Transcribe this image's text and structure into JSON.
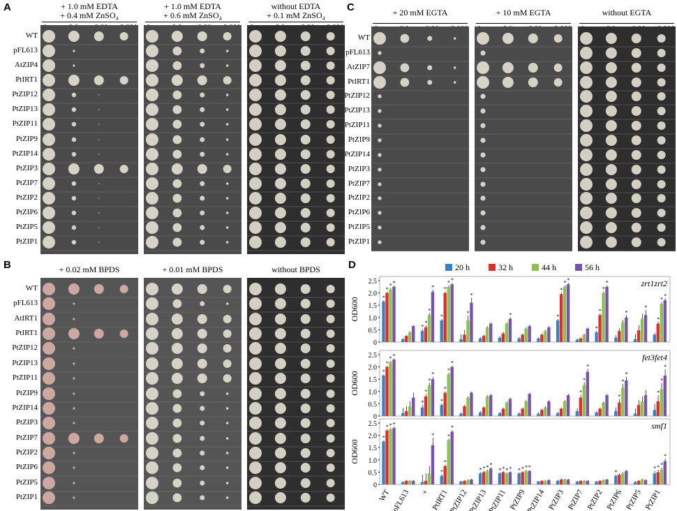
{
  "panels": {
    "A": {
      "letter": "A",
      "conditions": [
        {
          "line1": "+ 1.0 mM EDTA",
          "line2": "+ 0.4 mM ZnSO₄"
        },
        {
          "line1": "+ 1.0 mM EDTA",
          "line2": "+ 0.6 mM ZnSO₄"
        },
        {
          "line1": "without EDTA",
          "line2": "+ 0.1 mM ZnSO₄"
        }
      ],
      "dilutions": [
        "1",
        "0.1",
        "0.01",
        "0.001"
      ],
      "strains": [
        "WT",
        "pFL613",
        "AtZIP4",
        "PtIRT1",
        "PtZIP12",
        "PtZIP13",
        "PtZIP11",
        "PtZIP9",
        "PtZIP14",
        "PtZIP3",
        "PtZIP7",
        "PtZIP2",
        "PtZIP6",
        "PtZIP5",
        "PtZIP1"
      ]
    },
    "B": {
      "letter": "B",
      "conditions": [
        {
          "line1": "+ 0.02 mM BPDS",
          "line2": ""
        },
        {
          "line1": "+ 0.01 mM BPDS",
          "line2": ""
        },
        {
          "line1": "without BPDS",
          "line2": ""
        }
      ],
      "dilutions": [
        "1",
        "0.1",
        "0.01",
        "0.001"
      ],
      "strains": [
        "WT",
        "pFL613",
        "AtIRT1",
        "PtIRT1",
        "PtZIP12",
        "PtZIP13",
        "PtZIP11",
        "PtZIP9",
        "PtZIP14",
        "PtZIP3",
        "PtZIP7",
        "PtZIP2",
        "PtZIP6",
        "PtZIP5",
        "PtZIP1"
      ]
    },
    "C": {
      "letter": "C",
      "conditions": [
        {
          "line1": "+ 20 mM EGTA",
          "line2": ""
        },
        {
          "line1": "+ 10 mM EGTA",
          "line2": ""
        },
        {
          "line1": "without EGTA",
          "line2": ""
        }
      ],
      "dilutions": [
        "1",
        "0.1",
        "0.01",
        "0.001"
      ],
      "strains": [
        "WT",
        "pFL613",
        "AtZIP7",
        "PtIRT1",
        "PtZIP12",
        "PtZIP13",
        "PtZIP11",
        "PtZIP9",
        "PtZIP14",
        "PtZIP3",
        "PtZIP7",
        "PtZIP2",
        "PtZIP6",
        "PtZIP5",
        "PtZIP1"
      ]
    },
    "D": {
      "letter": "D",
      "ylabel": "OD600",
      "yticks": [
        "0",
        "0.5",
        "1.0",
        "1.5",
        "2.0",
        "2.5"
      ]
    }
  },
  "chart_data": {
    "type": "bar",
    "categories": [
      "WT",
      "pFL613",
      "+",
      "PtIRT1",
      "PtZIP12",
      "PtZIP13",
      "PtZIP11",
      "PtZIP9",
      "PtZIP14",
      "PtZIP3",
      "PtZIP7",
      "PtZIP2",
      "PtZIP6",
      "PtZIP5",
      "PtZIP1"
    ],
    "legend": [
      "20 h",
      "32 h",
      "44 h",
      "56 h"
    ],
    "colors": [
      "#3b7fc4",
      "#d9302c",
      "#8cc152",
      "#7a52a8"
    ],
    "ylim": [
      0,
      2.5
    ],
    "subplots": [
      {
        "name": "zrt1zrt2",
        "series": [
          {
            "name": "20 h",
            "values": [
              1.65,
              0.12,
              0.45,
              0.88,
              0.12,
              0.15,
              0.18,
              0.15,
              0.15,
              0.88,
              0.1,
              0.4,
              0.18,
              0.12,
              0.3
            ]
          },
          {
            "name": "32 h",
            "values": [
              2.0,
              0.25,
              0.6,
              2.0,
              0.3,
              0.25,
              0.35,
              0.3,
              0.3,
              1.95,
              0.15,
              1.1,
              0.45,
              0.48,
              0.75
            ]
          },
          {
            "name": "44 h",
            "values": [
              2.15,
              0.4,
              1.1,
              2.25,
              0.88,
              0.6,
              0.75,
              0.55,
              0.45,
              2.25,
              0.3,
              2.0,
              0.8,
              0.95,
              1.55
            ]
          },
          {
            "name": "56 h",
            "values": [
              2.25,
              0.65,
              2.05,
              2.35,
              1.6,
              0.75,
              0.95,
              0.65,
              0.6,
              2.35,
              0.55,
              2.25,
              1.0,
              1.1,
              1.7
            ]
          }
        ],
        "errors": [
          0.05,
          0.04,
          0.08,
          0.06,
          0.2,
          0.05,
          0.06,
          0.05,
          0.05,
          0.06,
          0.04,
          0.06,
          0.1,
          0.2,
          0.08
        ],
        "stars": [
          [
            1,
            1,
            1,
            1
          ],
          [
            0,
            0,
            0,
            0
          ],
          [
            1,
            1,
            1,
            1
          ],
          [
            1,
            1,
            1,
            1
          ],
          [
            0,
            0,
            1,
            1
          ],
          [
            0,
            0,
            0,
            0
          ],
          [
            0,
            0,
            0,
            1
          ],
          [
            0,
            0,
            0,
            0
          ],
          [
            0,
            0,
            0,
            0
          ],
          [
            1,
            1,
            1,
            1
          ],
          [
            0,
            0,
            0,
            0
          ],
          [
            1,
            1,
            1,
            1
          ],
          [
            0,
            0,
            0,
            1
          ],
          [
            0,
            0,
            0,
            1
          ],
          [
            0,
            1,
            1,
            1
          ]
        ]
      },
      {
        "name": "fet3fet4",
        "series": [
          {
            "name": "20 h",
            "values": [
              1.65,
              0.12,
              0.35,
              0.45,
              0.1,
              0.15,
              0.12,
              0.1,
              0.1,
              0.12,
              0.2,
              0.15,
              0.2,
              0.1,
              0.25
            ]
          },
          {
            "name": "32 h",
            "values": [
              2.0,
              0.2,
              0.8,
              0.95,
              0.4,
              0.35,
              0.3,
              0.3,
              0.25,
              0.3,
              0.75,
              0.3,
              0.55,
              0.45,
              0.6
            ]
          },
          {
            "name": "44 h",
            "values": [
              2.2,
              0.4,
              1.25,
              1.7,
              0.75,
              0.8,
              0.55,
              0.6,
              0.35,
              0.6,
              1.25,
              0.55,
              1.15,
              0.6,
              1.1
            ]
          },
          {
            "name": "56 h",
            "values": [
              2.3,
              0.75,
              1.5,
              2.0,
              0.95,
              0.85,
              0.7,
              0.9,
              0.6,
              0.85,
              1.8,
              0.85,
              1.45,
              0.85,
              1.65
            ]
          }
        ],
        "errors": [
          0.05,
          0.2,
          0.1,
          0.06,
          0.05,
          0.05,
          0.05,
          0.05,
          0.05,
          0.05,
          0.12,
          0.05,
          0.15,
          0.2,
          0.25
        ],
        "stars": [
          [
            1,
            1,
            1,
            1
          ],
          [
            0,
            0,
            0,
            0
          ],
          [
            1,
            1,
            1,
            1
          ],
          [
            1,
            1,
            1,
            1
          ],
          [
            0,
            0,
            0,
            0
          ],
          [
            0,
            0,
            0,
            0
          ],
          [
            0,
            0,
            0,
            0
          ],
          [
            0,
            0,
            0,
            0
          ],
          [
            0,
            0,
            0,
            0
          ],
          [
            0,
            0,
            0,
            0
          ],
          [
            0,
            1,
            1,
            1
          ],
          [
            0,
            0,
            0,
            0
          ],
          [
            0,
            1,
            1,
            1
          ],
          [
            0,
            0,
            0,
            0
          ],
          [
            0,
            1,
            1,
            1
          ]
        ]
      },
      {
        "name": "smf1",
        "series": [
          {
            "name": "20 h",
            "values": [
              1.75,
              0.1,
              0.1,
              0.35,
              0.12,
              0.45,
              0.45,
              0.45,
              0.12,
              0.15,
              0.12,
              0.12,
              0.35,
              0.1,
              0.45
            ]
          },
          {
            "name": "32 h",
            "values": [
              2.2,
              0.15,
              0.15,
              0.75,
              0.15,
              0.5,
              0.5,
              0.5,
              0.15,
              0.2,
              0.15,
              0.15,
              0.4,
              0.15,
              0.5
            ]
          },
          {
            "name": "44 h",
            "values": [
              2.25,
              0.15,
              0.45,
              1.8,
              0.18,
              0.55,
              0.45,
              0.55,
              0.15,
              0.2,
              0.15,
              0.18,
              0.45,
              0.2,
              0.6
            ]
          },
          {
            "name": "56 h",
            "values": [
              2.3,
              0.15,
              1.6,
              2.15,
              0.2,
              0.65,
              0.5,
              0.55,
              0.18,
              0.2,
              0.15,
              0.2,
              0.55,
              0.18,
              0.95
            ]
          }
        ],
        "errors": [
          0.05,
          0.03,
          0.3,
          0.06,
          0.03,
          0.05,
          0.04,
          0.04,
          0.03,
          0.03,
          0.03,
          0.03,
          0.05,
          0.03,
          0.1
        ],
        "stars": [
          [
            1,
            1,
            1,
            1
          ],
          [
            0,
            0,
            0,
            0
          ],
          [
            0,
            0,
            0,
            1
          ],
          [
            1,
            1,
            1,
            1
          ],
          [
            0,
            0,
            0,
            0
          ],
          [
            1,
            1,
            1,
            1
          ],
          [
            1,
            1,
            1,
            1
          ],
          [
            1,
            1,
            1,
            1
          ],
          [
            0,
            0,
            0,
            0
          ],
          [
            0,
            0,
            0,
            0
          ],
          [
            0,
            0,
            0,
            0
          ],
          [
            0,
            0,
            0,
            0
          ],
          [
            1,
            0,
            0,
            0
          ],
          [
            0,
            0,
            0,
            0
          ],
          [
            1,
            1,
            1,
            1
          ]
        ]
      }
    ]
  }
}
